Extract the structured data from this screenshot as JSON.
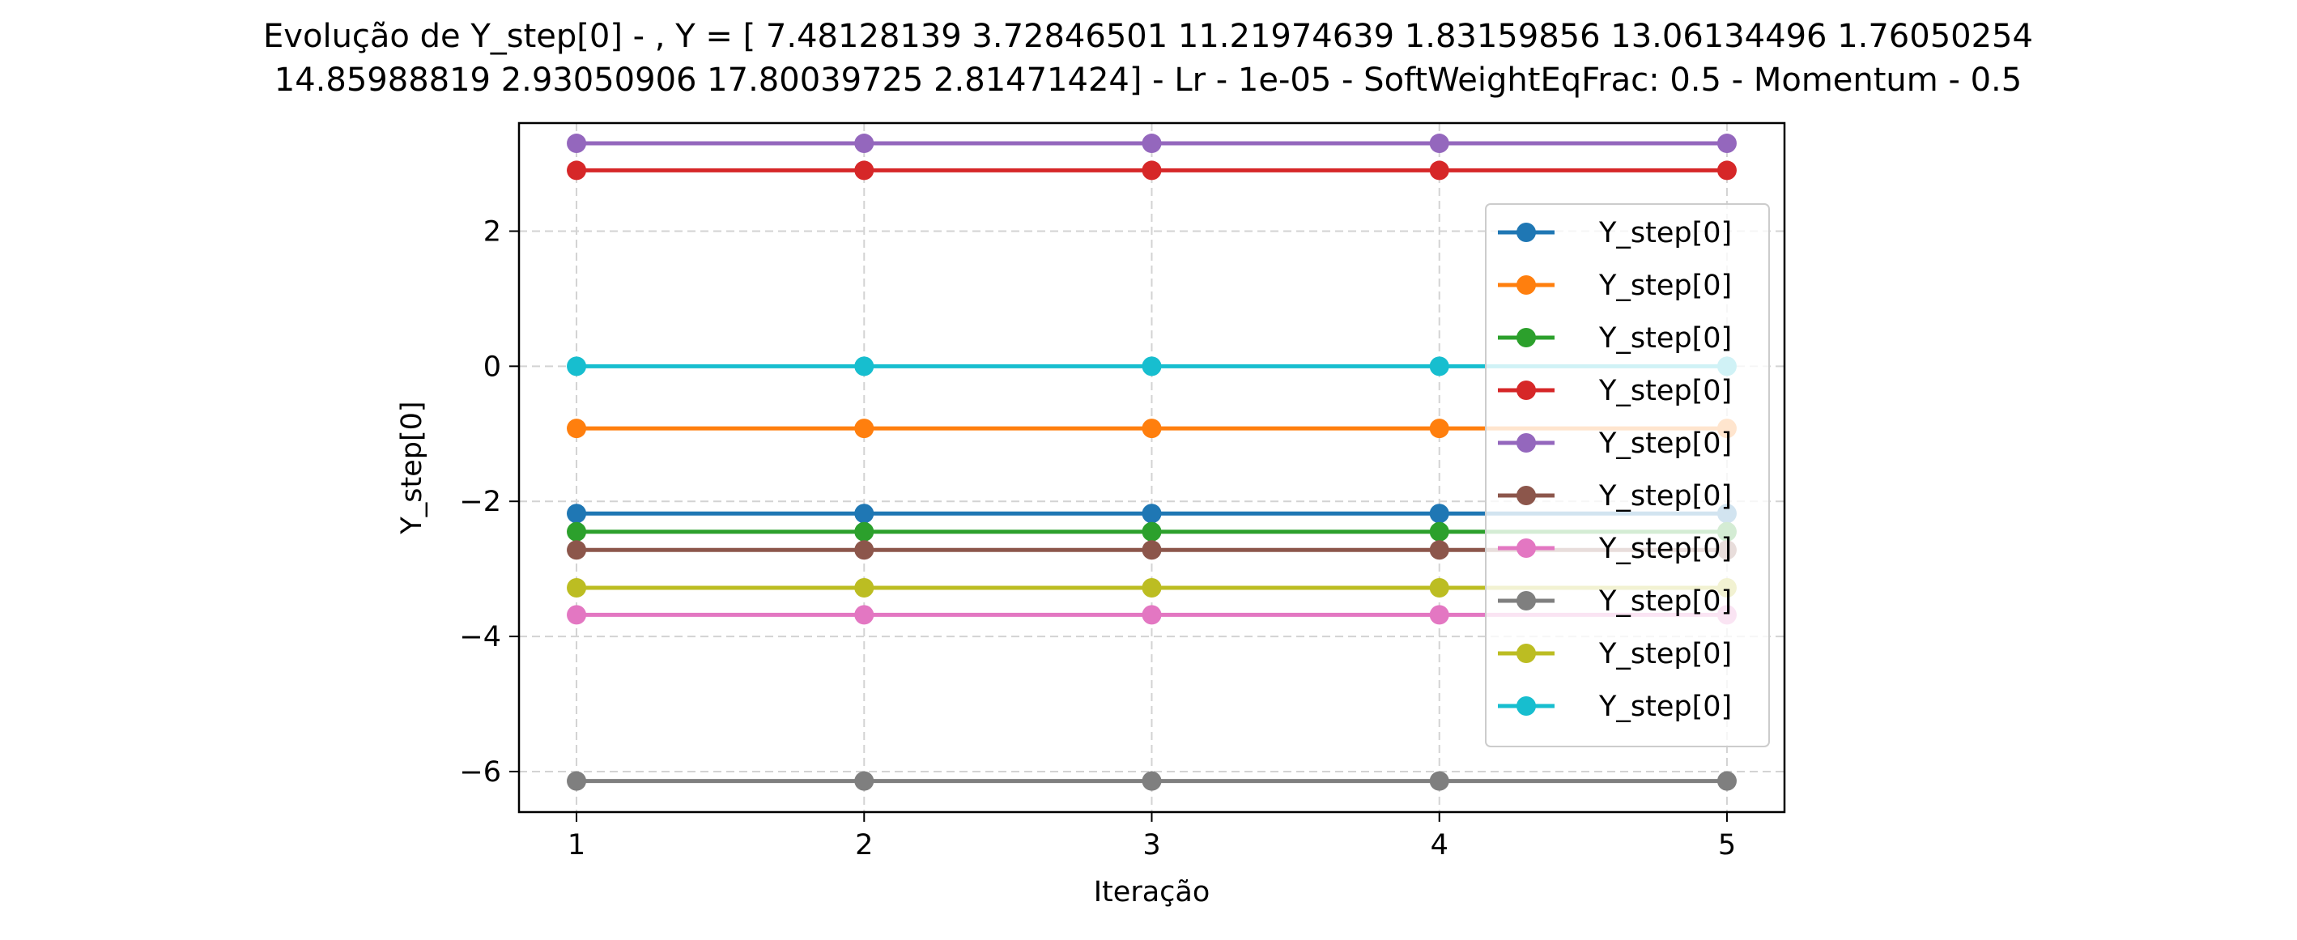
{
  "chart_data": {
    "type": "line",
    "title_lines": [
      "Evolução de Y_step[0] - , Y = [ 7.48128139  3.72846501 11.21974639  1.83159856 13.06134496  1.76050254",
      "14.85988819  2.93050906 17.80039725  2.81471424] - Lr - 1e-05 - SoftWeightEqFrac: 0.5 - Momentum - 0.5"
    ],
    "xlabel": "Iteração",
    "ylabel": "Y_step[0]",
    "x": [
      1,
      2,
      3,
      4,
      5
    ],
    "xticks": [
      1,
      2,
      3,
      4,
      5
    ],
    "yticks": [
      -6,
      -4,
      -2,
      0,
      2
    ],
    "ytick_labels": [
      "−6",
      "−4",
      "−2",
      "0",
      "2"
    ],
    "xlim": [
      0.8,
      5.2
    ],
    "ylim": [
      -6.6,
      3.6
    ],
    "grid": true,
    "legend_position": "right",
    "series": [
      {
        "name": "Y_step[0]",
        "color": "#1f77b4",
        "values": [
          -2.18,
          -2.18,
          -2.18,
          -2.18,
          -2.18
        ]
      },
      {
        "name": "Y_step[0]",
        "color": "#ff7f0e",
        "values": [
          -0.92,
          -0.92,
          -0.92,
          -0.92,
          -0.92
        ]
      },
      {
        "name": "Y_step[0]",
        "color": "#2ca02c",
        "values": [
          -2.45,
          -2.45,
          -2.45,
          -2.45,
          -2.45
        ]
      },
      {
        "name": "Y_step[0]",
        "color": "#d62728",
        "values": [
          2.9,
          2.9,
          2.9,
          2.9,
          2.9
        ]
      },
      {
        "name": "Y_step[0]",
        "color": "#9467bd",
        "values": [
          3.3,
          3.3,
          3.3,
          3.3,
          3.3
        ]
      },
      {
        "name": "Y_step[0]",
        "color": "#8c564b",
        "values": [
          -2.72,
          -2.72,
          -2.72,
          -2.72,
          -2.72
        ]
      },
      {
        "name": "Y_step[0]",
        "color": "#e377c2",
        "values": [
          -3.68,
          -3.68,
          -3.68,
          -3.68,
          -3.68
        ]
      },
      {
        "name": "Y_step[0]",
        "color": "#7f7f7f",
        "values": [
          -6.14,
          -6.14,
          -6.14,
          -6.14,
          -6.14
        ]
      },
      {
        "name": "Y_step[0]",
        "color": "#bcbd22",
        "values": [
          -3.28,
          -3.28,
          -3.28,
          -3.28,
          -3.28
        ]
      },
      {
        "name": "Y_step[0]",
        "color": "#17becf",
        "values": [
          0.0,
          0.0,
          0.0,
          0.0,
          0.0
        ]
      }
    ]
  }
}
